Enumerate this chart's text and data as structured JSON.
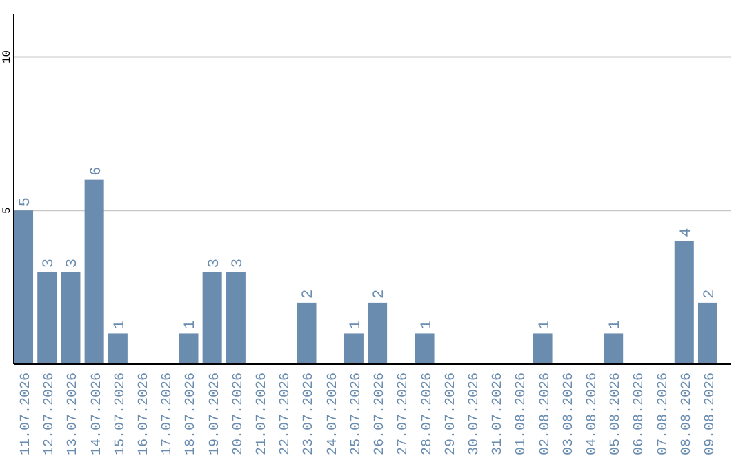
{
  "chart_data": {
    "type": "bar",
    "categories": [
      "11.07.2026",
      "12.07.2026",
      "13.07.2026",
      "14.07.2026",
      "15.07.2026",
      "16.07.2026",
      "17.07.2026",
      "18.07.2026",
      "19.07.2026",
      "20.07.2026",
      "21.07.2026",
      "22.07.2026",
      "23.07.2026",
      "24.07.2026",
      "25.07.2026",
      "26.07.2026",
      "27.07.2026",
      "28.07.2026",
      "29.07.2026",
      "30.07.2026",
      "31.07.2026",
      "01.08.2026",
      "02.08.2026",
      "03.08.2026",
      "04.08.2026",
      "05.08.2026",
      "06.08.2026",
      "07.08.2026",
      "08.08.2026",
      "09.08.2026"
    ],
    "values": [
      5,
      3,
      3,
      6,
      1,
      0,
      0,
      1,
      3,
      3,
      0,
      0,
      2,
      0,
      1,
      2,
      0,
      1,
      0,
      0,
      0,
      0,
      1,
      0,
      0,
      1,
      0,
      0,
      4,
      2
    ],
    "value_labels": [
      "5",
      "3",
      "3",
      "6",
      "1",
      null,
      null,
      "1",
      "3",
      "3",
      null,
      null,
      "2",
      null,
      "1",
      "2",
      null,
      "1",
      null,
      null,
      null,
      null,
      "1",
      null,
      null,
      "1",
      null,
      null,
      "4",
      "2"
    ],
    "color": "#6a8caf",
    "ylim": [
      0,
      11.4
    ],
    "yticks": [
      5,
      10
    ],
    "grid": "y"
  }
}
